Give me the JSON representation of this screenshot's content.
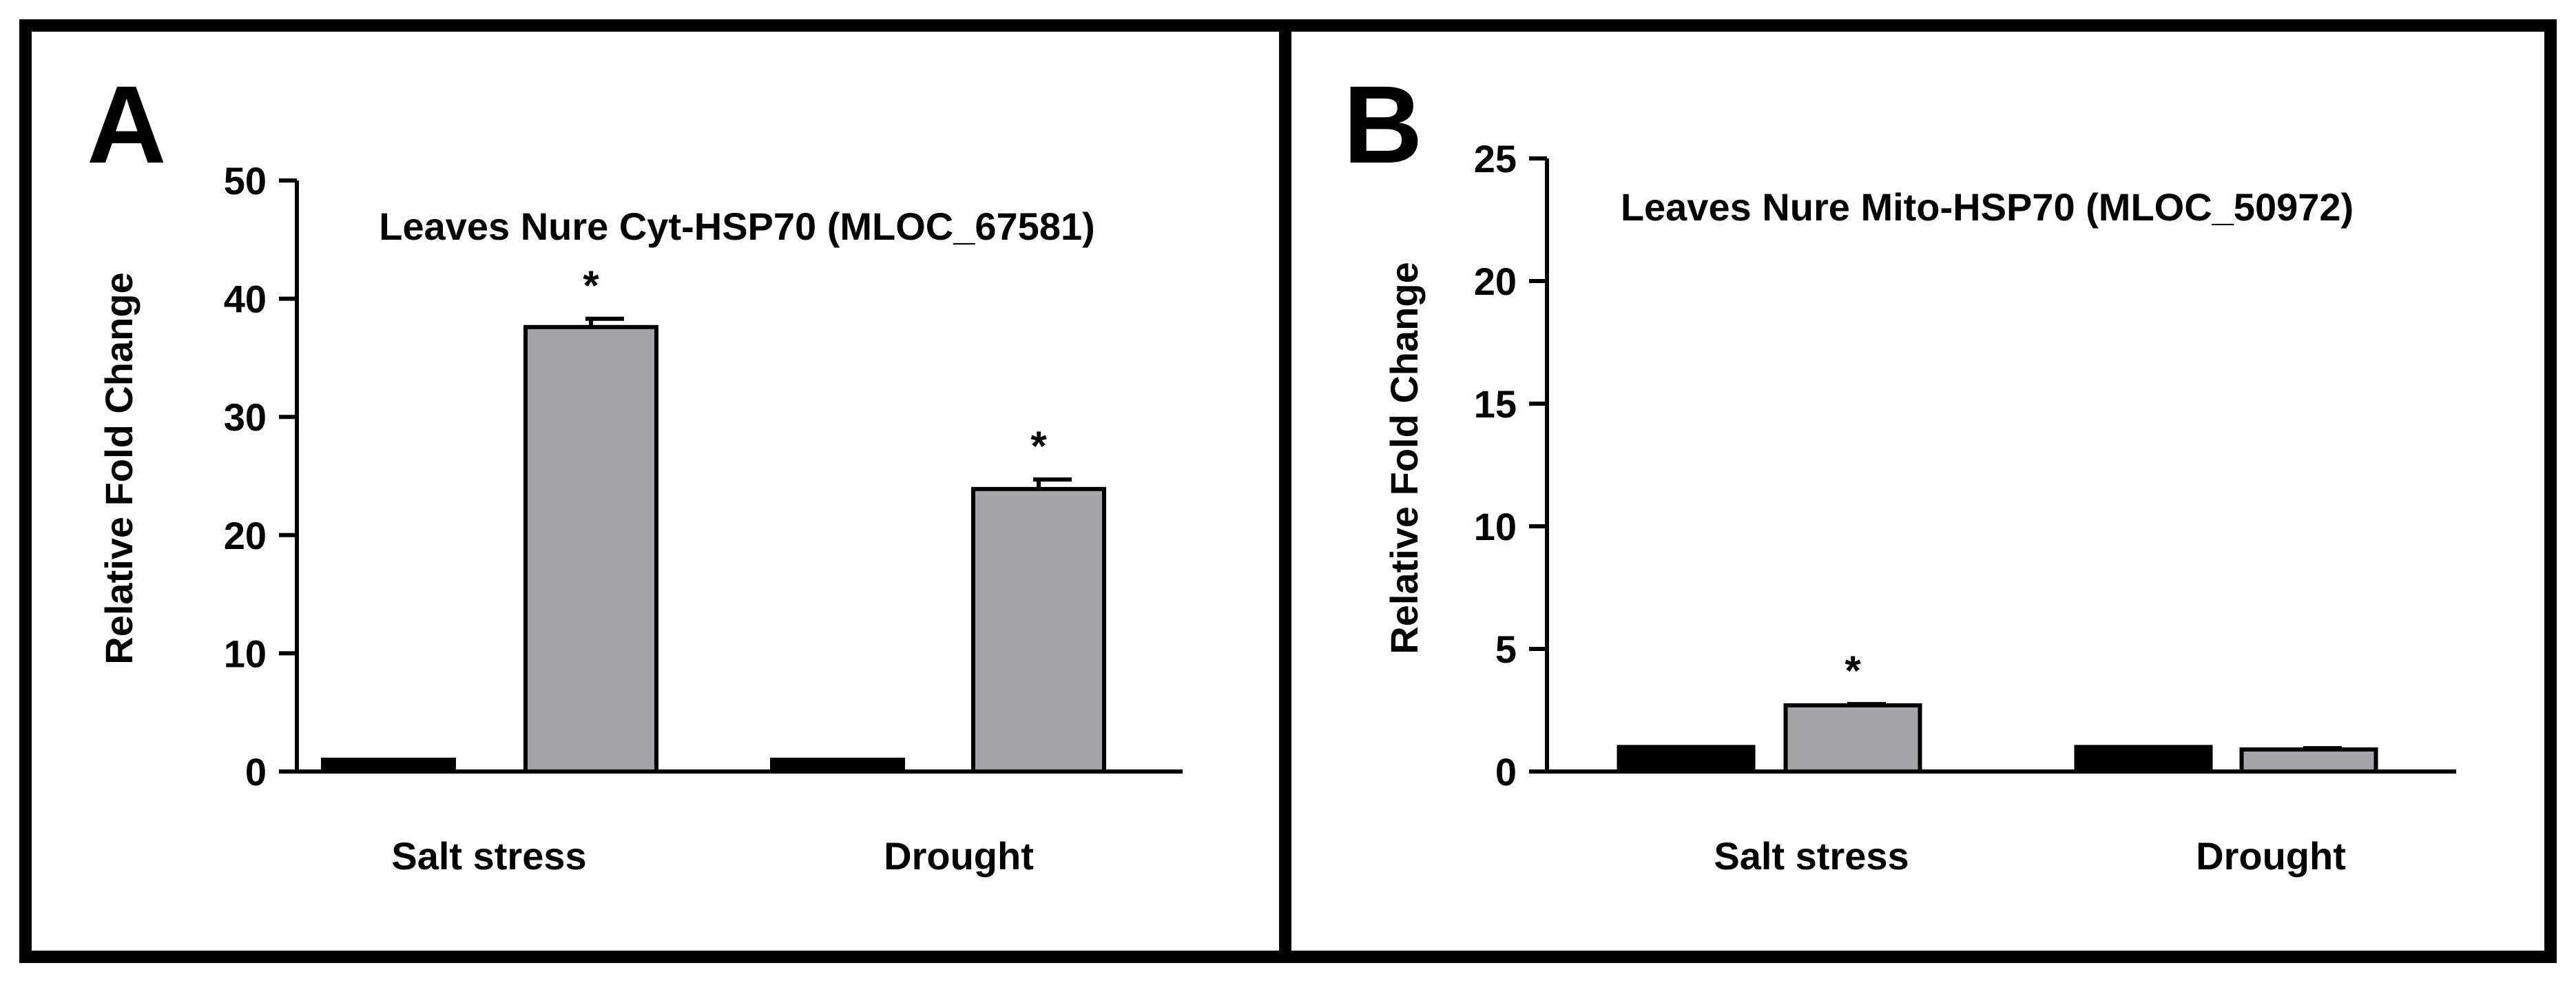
{
  "colors": {
    "control": "#000000",
    "treated": "#a3a4a7",
    "frame": "#000000",
    "background": "#ffffff"
  },
  "chart_data": [
    {
      "panel": "A",
      "type": "bar",
      "title": "Leaves Nure Cyt-HSP70  (MLOC_67581)",
      "xlabel": "",
      "ylabel": "Relative Fold Change",
      "ylim": [
        0,
        50
      ],
      "yticks": [
        0,
        10,
        20,
        30,
        40,
        50
      ],
      "categories": [
        "Salt stress",
        "Drought"
      ],
      "series": [
        {
          "name": "control",
          "values": [
            1.0,
            1.0
          ],
          "errors": [
            0,
            0
          ],
          "significant": [
            false,
            false
          ]
        },
        {
          "name": "treated",
          "values": [
            37.6,
            23.9
          ],
          "errors": [
            0.7,
            0.8
          ],
          "significant": [
            true,
            true
          ]
        }
      ],
      "significance_mark": "*",
      "grid": false,
      "legend": "none"
    },
    {
      "panel": "B",
      "type": "bar",
      "title": "Leaves Nure Mito-HSP70  (MLOC_50972)",
      "xlabel": "",
      "ylabel": "Relative Fold Change",
      "ylim": [
        0,
        25
      ],
      "yticks": [
        0,
        5,
        10,
        15,
        20,
        25
      ],
      "categories": [
        "Salt stress",
        "Drought"
      ],
      "series": [
        {
          "name": "control",
          "values": [
            1.0,
            1.0
          ],
          "errors": [
            0,
            0
          ],
          "significant": [
            false,
            false
          ]
        },
        {
          "name": "treated",
          "values": [
            2.7,
            0.9
          ],
          "errors": [
            0.05,
            0.05
          ],
          "significant": [
            true,
            false
          ]
        }
      ],
      "significance_mark": "*",
      "grid": false,
      "legend": "none"
    }
  ]
}
